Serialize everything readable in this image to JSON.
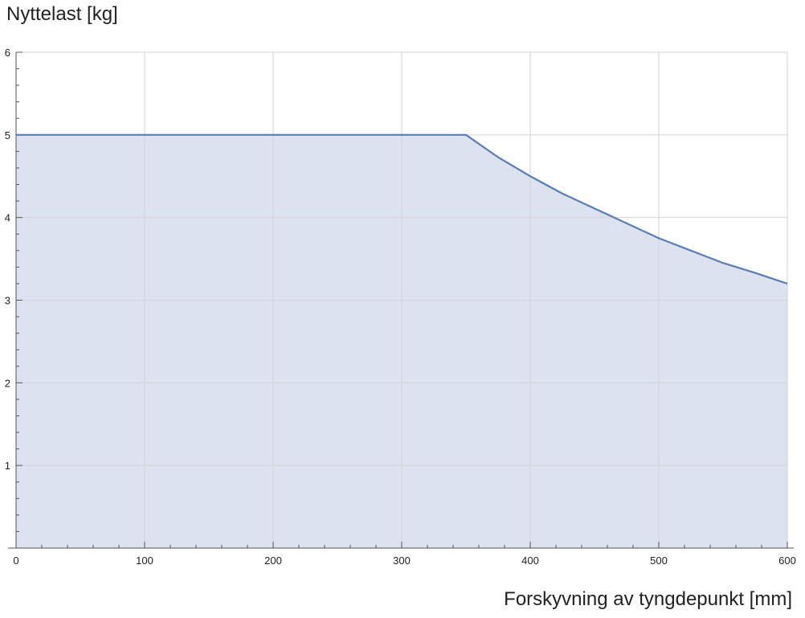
{
  "chart_data": {
    "type": "area",
    "title": "",
    "ylabel": "Nyttelast [kg]",
    "xlabel": "Forskyvning av tyngdepunkt [mm]",
    "xlim": [
      0,
      600
    ],
    "ylim": [
      0,
      6
    ],
    "x_ticks": [
      0,
      100,
      200,
      300,
      400,
      500,
      600
    ],
    "y_ticks": [
      1,
      2,
      3,
      4,
      5,
      6
    ],
    "x_tick_labels": [
      "0",
      "100",
      "200",
      "300",
      "400",
      "500",
      "600"
    ],
    "y_tick_labels": [
      "1",
      "2",
      "3",
      "4",
      "5",
      "6"
    ],
    "grid": true,
    "series": [
      {
        "x": [
          0,
          350,
          375,
          400,
          425,
          450,
          475,
          500,
          525,
          550,
          575,
          600
        ],
        "values": [
          5,
          5,
          4.73,
          4.5,
          4.29,
          4.11,
          3.93,
          3.75,
          3.6,
          3.45,
          3.33,
          3.2
        ]
      }
    ],
    "colors": {
      "line": "#5b7db5",
      "fill": "#dce2ef",
      "grid": "#d3d3d3",
      "axis": "#555555"
    }
  }
}
